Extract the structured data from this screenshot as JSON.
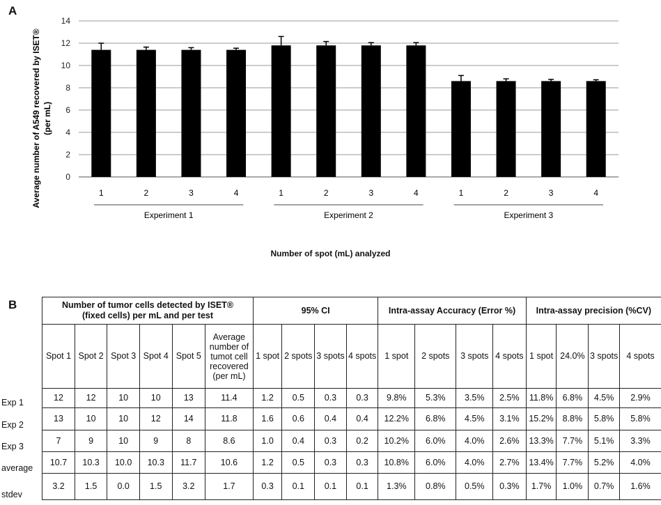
{
  "panelA": {
    "letter": "A",
    "ylabel_line1": "Average number of A549 recovered by ISET®",
    "ylabel_line2": "(per mL)",
    "xlabel": "Number of spot (mL) analyzed"
  },
  "panelB": {
    "letter": "B",
    "group_headers": [
      "Number of tumor cells detected by ISET®",
      "(fixed cells) per mL and per test",
      "95% CI",
      "Intra-assay Accuracy (Error %)",
      "Intra-assay precision (%CV)"
    ],
    "acc_prefix": "Intra-",
    "acc_word": "assay",
    "acc_suffix": " Accuracy (Error %)",
    "sub_headers": [
      "Spot 1",
      "Spot 2",
      "Spot 3",
      "Spot 4",
      "Spot 5",
      "Average number of tumot cell recovered (per mL)",
      "1 spot",
      "2 spots",
      "3 spots",
      "4 spots",
      "1 spot",
      "2 spots",
      "3 spots",
      "4 spots",
      "1 spot",
      "24.0%",
      "3 spots",
      "4 spots"
    ],
    "avg_header_lines": [
      "Average",
      "number of",
      "tumot cell",
      "recovered",
      "(per mL)"
    ],
    "rows": [
      {
        "label": "Exp 1",
        "cells": [
          "12",
          "12",
          "10",
          "10",
          "13",
          "11.4",
          "1.2",
          "0.5",
          "0.3",
          "0.3",
          "9.8%",
          "5.3%",
          "3.5%",
          "2.5%",
          "11.8%",
          "6.8%",
          "4.5%",
          "2.9%"
        ]
      },
      {
        "label": "Exp 2",
        "cells": [
          "13",
          "10",
          "10",
          "12",
          "14",
          "11.8",
          "1.6",
          "0.6",
          "0.4",
          "0.4",
          "12.2%",
          "6.8%",
          "4.5%",
          "3.1%",
          "15.2%",
          "8.8%",
          "5.8%",
          "5.8%"
        ]
      },
      {
        "label": "Exp 3",
        "cells": [
          "7",
          "9",
          "10",
          "9",
          "8",
          "8.6",
          "1.0",
          "0.4",
          "0.3",
          "0.2",
          "10.2%",
          "6.0%",
          "4.0%",
          "2.6%",
          "13.3%",
          "7.7%",
          "5.1%",
          "3.3%"
        ]
      },
      {
        "label": "average",
        "cells": [
          "10.7",
          "10.3",
          "10.0",
          "10.3",
          "11.7",
          "10.6",
          "1.2",
          "0.5",
          "0.3",
          "0.3",
          "10.8%",
          "6.0%",
          "4.0%",
          "2.7%",
          "13.4%",
          "7.7%",
          "5.2%",
          "4.0%"
        ]
      },
      {
        "label": "stdev",
        "cells": [
          "3.2",
          "1.5",
          "0.0",
          "1.5",
          "3.2",
          "1.7",
          "0.3",
          "0.1",
          "0.1",
          "0.1",
          "1.3%",
          "0.8%",
          "0.5%",
          "0.3%",
          "1.7%",
          "1.0%",
          "0.7%",
          "1.6%"
        ]
      }
    ]
  },
  "chart_data": {
    "type": "bar",
    "title": "",
    "xlabel": "Number of spot (mL) analyzed",
    "ylabel": "Average number of A549 recovered by ISET® (per mL)",
    "ylim": [
      0,
      14
    ],
    "yticks": [
      0,
      2,
      4,
      6,
      8,
      10,
      12,
      14
    ],
    "grid": true,
    "bar_color": "#000000",
    "groups": [
      {
        "name": "Experiment 1",
        "categories": [
          "1",
          "2",
          "3",
          "4"
        ],
        "values": [
          11.4,
          11.4,
          11.4,
          11.4
        ],
        "errors": [
          0.6,
          0.25,
          0.2,
          0.15
        ]
      },
      {
        "name": "Experiment 2",
        "categories": [
          "1",
          "2",
          "3",
          "4"
        ],
        "values": [
          11.8,
          11.8,
          11.8,
          11.8
        ],
        "errors": [
          0.8,
          0.35,
          0.25,
          0.25
        ]
      },
      {
        "name": "Experiment 3",
        "categories": [
          "1",
          "2",
          "3",
          "4"
        ],
        "values": [
          8.6,
          8.6,
          8.6,
          8.6
        ],
        "errors": [
          0.5,
          0.2,
          0.15,
          0.12
        ]
      }
    ]
  }
}
